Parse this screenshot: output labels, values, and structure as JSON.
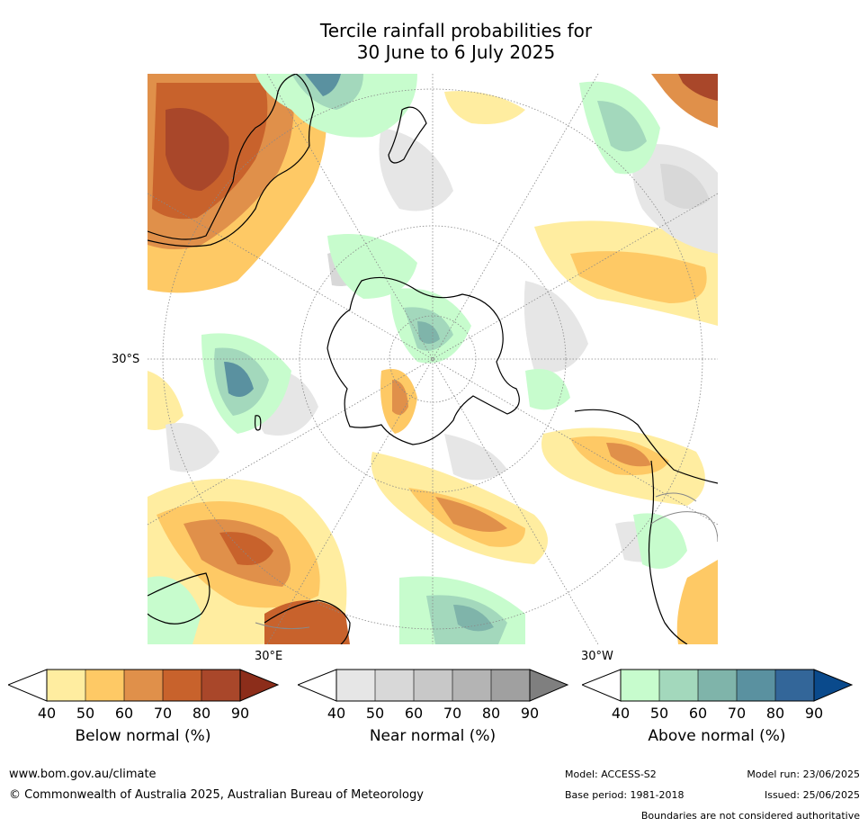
{
  "title": {
    "line1": "Tercile rainfall probabilities for",
    "line2": "30 June to 6 July 2025"
  },
  "map_labels": {
    "lat_30s": "30°S",
    "lon_30e": "30°E",
    "lon_30w": "30°W"
  },
  "colorbars": [
    {
      "title": "Below normal (%)",
      "ticks": [
        "40",
        "50",
        "60",
        "70",
        "80",
        "90"
      ],
      "colors": [
        "#ffffff",
        "#ffeda0",
        "#fec965",
        "#e0904a",
        "#c8622c",
        "#a9472a",
        "#8c2d1a"
      ]
    },
    {
      "title": "Near normal (%)",
      "ticks": [
        "40",
        "50",
        "60",
        "70",
        "80",
        "90"
      ],
      "colors": [
        "#ffffff",
        "#e6e6e6",
        "#d8d8d8",
        "#c8c8c8",
        "#b4b4b4",
        "#a0a0a0",
        "#7f7f7f"
      ]
    },
    {
      "title": "Above normal (%)",
      "ticks": [
        "40",
        "50",
        "60",
        "70",
        "80",
        "90"
      ],
      "colors": [
        "#ffffff",
        "#c7fccd",
        "#a3d8bc",
        "#7fb4aa",
        "#5a91a0",
        "#336699",
        "#0a4a8c"
      ]
    }
  ],
  "footer": {
    "website": "www.bom.gov.au/climate",
    "copyright": "© Commonwealth of Australia 2025, Australian Bureau of Meteorology",
    "model": "Model: ACCESS-S2",
    "base_period": "Base period: 1981-2018",
    "model_run": "Model run: 23/06/2025",
    "issued": "Issued: 25/06/2025",
    "disclaimer": "Boundaries are not considered authoritative"
  }
}
